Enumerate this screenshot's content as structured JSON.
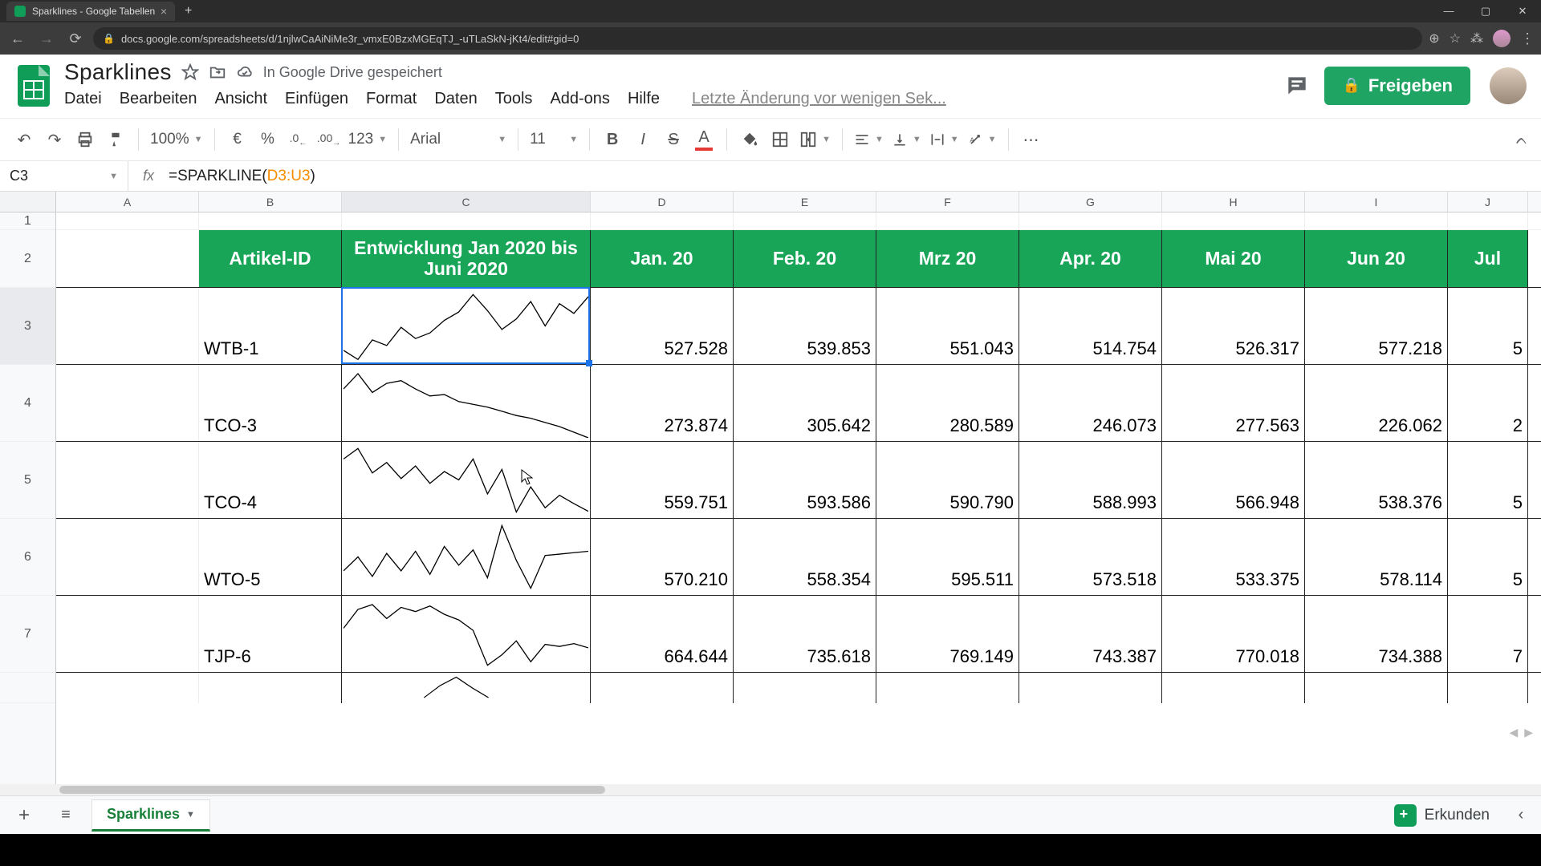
{
  "browser": {
    "tab_title": "Sparklines - Google Tabellen",
    "url": "docs.google.com/spreadsheets/d/1njlwCaAiNiMe3r_vmxE0BzxMGEqTJ_-uTLaSkN-jKt4/edit#gid=0"
  },
  "doc": {
    "title": "Sparklines",
    "saved_text": "In Google Drive gespeichert",
    "menu": {
      "file": "Datei",
      "edit": "Bearbeiten",
      "view": "Ansicht",
      "insert": "Einfügen",
      "format": "Format",
      "data": "Daten",
      "tools": "Tools",
      "addons": "Add-ons",
      "help": "Hilfe"
    },
    "last_edit": "Letzte Änderung vor wenigen Sek...",
    "share_label": "Freigeben"
  },
  "toolbar": {
    "zoom": "100%",
    "font": "Arial",
    "fontsize": "11",
    "formats": {
      "euro": "€",
      "pct": "%",
      "dec_less": ".0",
      "dec_more": ".00",
      "numfmt": "123"
    }
  },
  "formula": {
    "cell_ref": "C3",
    "prefix": "=SPARKLINE(",
    "range": "D3:U3",
    "suffix": ")"
  },
  "grid": {
    "col_widths": {
      "A": 178,
      "B": 178,
      "C": 310,
      "D": 178,
      "E": 178,
      "F": 178,
      "G": 178,
      "H": 178,
      "I": 178,
      "J": 100
    },
    "col_letters": [
      "A",
      "B",
      "C",
      "D",
      "E",
      "F",
      "G",
      "H",
      "I",
      "J"
    ],
    "row_heights": {
      "r1": 22,
      "header": 72,
      "data": 96,
      "partial": 38
    },
    "header": {
      "artikel": "Artikel-ID",
      "entwicklung": "Entwicklung Jan 2020 bis Juni 2020",
      "months": [
        "Jan. 20",
        "Feb. 20",
        "Mrz 20",
        "Apr. 20",
        "Mai 20",
        "Jun 20",
        "Jul"
      ]
    },
    "header_bg": "#18a558",
    "header_fg": "#ffffff",
    "border_color": "#222222",
    "selection_color": "#1a73e8",
    "rows": [
      {
        "id": "WTB-1",
        "vals": [
          "527.528",
          "539.853",
          "551.043",
          "514.754",
          "526.317",
          "577.218",
          "5"
        ],
        "spark": [
          0.85,
          0.98,
          0.7,
          0.78,
          0.52,
          0.68,
          0.6,
          0.42,
          0.3,
          0.05,
          0.28,
          0.55,
          0.4,
          0.15,
          0.5,
          0.18,
          0.32,
          0.08
        ],
        "trend": "up"
      },
      {
        "id": "TCO-3",
        "vals": [
          "273.874",
          "305.642",
          "280.589",
          "246.073",
          "277.563",
          "226.062",
          "2"
        ],
        "spark": [
          0.3,
          0.08,
          0.35,
          0.22,
          0.18,
          0.3,
          0.4,
          0.38,
          0.48,
          0.52,
          0.56,
          0.62,
          0.68,
          0.72,
          0.78,
          0.84,
          0.92,
          1.0
        ],
        "trend": "down"
      },
      {
        "id": "TCO-4",
        "vals": [
          "559.751",
          "593.586",
          "590.790",
          "588.993",
          "566.948",
          "538.376",
          "5"
        ],
        "spark": [
          0.2,
          0.05,
          0.4,
          0.25,
          0.48,
          0.3,
          0.55,
          0.38,
          0.5,
          0.2,
          0.7,
          0.35,
          0.96,
          0.6,
          0.9,
          0.72,
          0.84,
          0.95
        ],
        "trend": "down"
      },
      {
        "id": "WTO-5",
        "vals": [
          "570.210",
          "558.354",
          "595.511",
          "573.518",
          "533.375",
          "578.114",
          "5"
        ],
        "spark": [
          0.7,
          0.5,
          0.78,
          0.45,
          0.7,
          0.42,
          0.75,
          0.35,
          0.62,
          0.4,
          0.8,
          0.05,
          0.55,
          0.95,
          0.48,
          0.46,
          0.44,
          0.42
        ],
        "trend": "flat"
      },
      {
        "id": "TJP-6",
        "vals": [
          "664.644",
          "735.618",
          "769.149",
          "743.387",
          "770.018",
          "734.388",
          "7"
        ],
        "spark": [
          0.42,
          0.15,
          0.08,
          0.28,
          0.12,
          0.18,
          0.1,
          0.22,
          0.3,
          0.45,
          0.95,
          0.8,
          0.6,
          0.9,
          0.65,
          0.68,
          0.64,
          0.7
        ],
        "trend": "flat"
      }
    ],
    "partial_spark": [
      0.9,
      0.4,
      0.05,
      0.5,
      0.9
    ]
  },
  "bottom": {
    "sheet_tab": "Sparklines",
    "explore": "Erkunden"
  }
}
